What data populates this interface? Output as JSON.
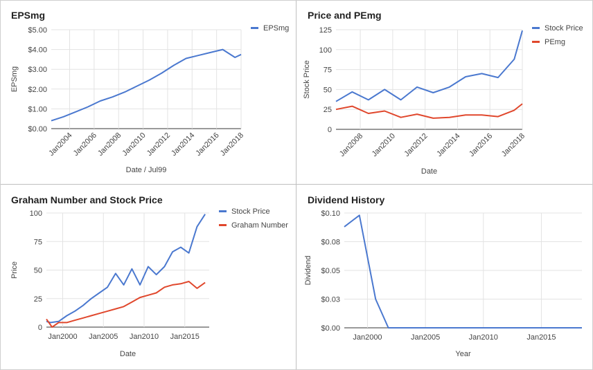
{
  "colors": {
    "blue": "#4a78cf",
    "red": "#e0472c",
    "grid": "#e3e3e3",
    "axis": "#333333",
    "tick_text": "#444444"
  },
  "chart_data": [
    {
      "id": "eps",
      "type": "line",
      "title": "EPSmg",
      "xlabel": "Date / Jul99",
      "ylabel": "EPSmg",
      "x_ticks": [
        2004,
        2006,
        2008,
        2010,
        2012,
        2014,
        2016,
        2018
      ],
      "x_tick_labels": [
        "Jan2004",
        "Jan2006",
        "Jan2008",
        "Jan2010",
        "Jan2012",
        "Jan2014",
        "Jan2016",
        "Jan2018"
      ],
      "xlim": [
        2002.5,
        2018.0
      ],
      "ylim": [
        0,
        5
      ],
      "y_ticks": [
        0,
        1,
        2,
        3,
        4,
        5
      ],
      "y_tick_labels": [
        "$0.00",
        "$1.00",
        "$2.00",
        "$3.00",
        "$4.00",
        "$5.00"
      ],
      "legend_position": "top-right",
      "series": [
        {
          "name": "EPSmg",
          "color": "#4a78cf",
          "x": [
            2002.5,
            2003.5,
            2004.5,
            2005.5,
            2006.5,
            2007.5,
            2008.5,
            2009.5,
            2010.5,
            2011.5,
            2012.5,
            2013.5,
            2014.5,
            2015.5,
            2016.5,
            2017.5,
            2018.0
          ],
          "y": [
            0.4,
            0.6,
            0.85,
            1.1,
            1.4,
            1.6,
            1.85,
            2.15,
            2.45,
            2.8,
            3.2,
            3.55,
            3.7,
            3.85,
            4.0,
            3.6,
            3.75
          ]
        }
      ]
    },
    {
      "id": "pe",
      "type": "line",
      "title": "Price and PEmg",
      "xlabel": "Date",
      "ylabel": "Stock Price",
      "x_ticks": [
        2008,
        2010,
        2012,
        2014,
        2016,
        2018
      ],
      "x_tick_labels": [
        "Jan2008",
        "Jan2010",
        "Jan2012",
        "Jan2014",
        "Jan2016",
        "Jan2018"
      ],
      "xlim": [
        2006.5,
        2018.0
      ],
      "ylim": [
        0,
        125
      ],
      "y_ticks": [
        0,
        25,
        50,
        75,
        100,
        125
      ],
      "y_tick_labels": [
        "0",
        "25",
        "50",
        "75",
        "100",
        "125"
      ],
      "legend_position": "top-right",
      "series": [
        {
          "name": "Stock Price",
          "color": "#4a78cf",
          "x": [
            2006.5,
            2007.5,
            2008.5,
            2009.5,
            2010.5,
            2011.5,
            2012.5,
            2013.5,
            2014.5,
            2015.5,
            2016.5,
            2017.5,
            2018.0
          ],
          "y": [
            35,
            47,
            37,
            50,
            37,
            53,
            46,
            53,
            66,
            70,
            65,
            88,
            124
          ]
        },
        {
          "name": "PEmg",
          "color": "#e0472c",
          "x": [
            2006.5,
            2007.5,
            2008.5,
            2009.5,
            2010.5,
            2011.5,
            2012.5,
            2013.5,
            2014.5,
            2015.5,
            2016.5,
            2017.5,
            2018.0
          ],
          "y": [
            25,
            29,
            20,
            23,
            15,
            19,
            14,
            15,
            18,
            18,
            16,
            24,
            32
          ]
        }
      ]
    },
    {
      "id": "graham",
      "type": "line",
      "title": "Graham Number and Stock Price",
      "xlabel": "Date",
      "ylabel": "Price",
      "x_ticks": [
        2000,
        2005,
        2010,
        2015
      ],
      "x_tick_labels": [
        "Jan2000",
        "Jan2005",
        "Jan2010",
        "Jan2015"
      ],
      "xlim": [
        1998.0,
        2018.0
      ],
      "ylim": [
        0,
        100
      ],
      "y_ticks": [
        0,
        25,
        50,
        75,
        100
      ],
      "y_tick_labels": [
        "0",
        "25",
        "50",
        "75",
        "100"
      ],
      "legend_position": "top-right",
      "series": [
        {
          "name": "Stock Price",
          "color": "#4a78cf",
          "x": [
            1998.0,
            1998.5,
            1999.5,
            2000.5,
            2001.5,
            2002.5,
            2003.5,
            2004.5,
            2005.5,
            2006.5,
            2007.5,
            2008.5,
            2009.5,
            2010.5,
            2011.5,
            2012.5,
            2013.5,
            2014.5,
            2015.5,
            2016.5,
            2017.5
          ],
          "y": [
            5,
            4,
            5,
            10,
            14,
            19,
            25,
            30,
            35,
            47,
            37,
            51,
            37,
            53,
            46,
            53,
            66,
            70,
            65,
            88,
            99
          ]
        },
        {
          "name": "Graham Number",
          "color": "#e0472c",
          "x": [
            1998.0,
            1998.7,
            1999.5,
            2000.5,
            2001.5,
            2002.5,
            2003.5,
            2004.5,
            2005.5,
            2006.5,
            2007.5,
            2008.5,
            2009.5,
            2010.5,
            2011.5,
            2012.5,
            2013.5,
            2014.5,
            2015.5,
            2016.5,
            2017.5
          ],
          "y": [
            7,
            0,
            4,
            4,
            6,
            8,
            10,
            12,
            14,
            16,
            18,
            22,
            26,
            28,
            30,
            35,
            37,
            38,
            40,
            34,
            39
          ]
        }
      ]
    },
    {
      "id": "div",
      "type": "line",
      "title": "Dividend History",
      "xlabel": "Year",
      "ylabel": "Dividend",
      "x_ticks": [
        2000,
        2005,
        2010,
        2015
      ],
      "x_tick_labels": [
        "Jan2000",
        "Jan2005",
        "Jan2010",
        "Jan2015"
      ],
      "xlim": [
        1998.0,
        2018.5
      ],
      "ylim": [
        0,
        0.1
      ],
      "y_ticks": [
        0,
        0.025,
        0.05,
        0.075,
        0.1
      ],
      "y_tick_labels": [
        "$0.00",
        "$0.03",
        "$0.05",
        "$0.08",
        "$0.10"
      ],
      "legend_position": "none",
      "series": [
        {
          "name": "",
          "color": "#4a78cf",
          "x": [
            1998.0,
            1999.3,
            2000.7,
            2001.8,
            2018.5
          ],
          "y": [
            0.088,
            0.098,
            0.025,
            0.0,
            0.0
          ]
        }
      ]
    }
  ]
}
